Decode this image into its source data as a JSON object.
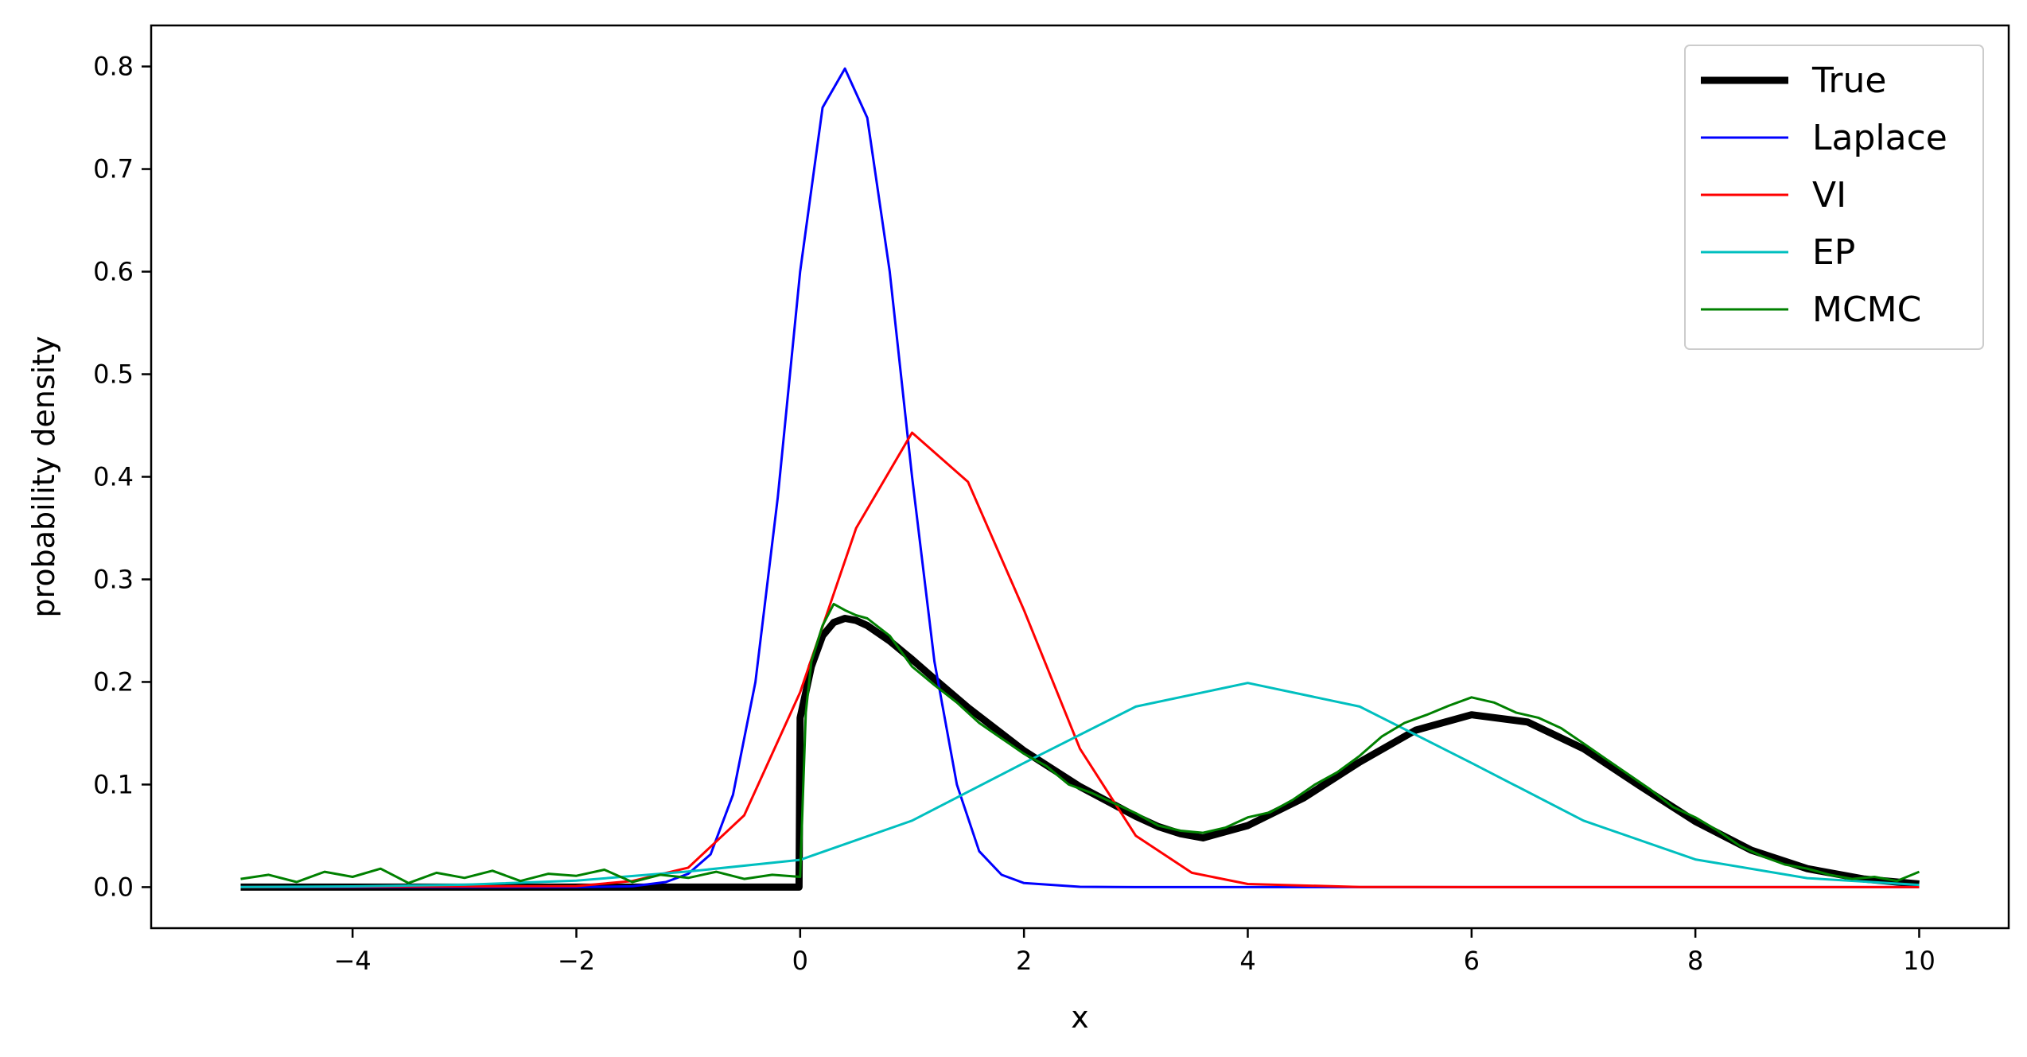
{
  "chart_data": {
    "type": "line",
    "title": "",
    "xlabel": "x",
    "ylabel": "probability density",
    "xlim": [
      -5.8,
      10.8
    ],
    "ylim": [
      -0.04,
      0.84
    ],
    "xticks": [
      -4,
      -2,
      0,
      2,
      4,
      6,
      8,
      10
    ],
    "xtick_labels": [
      "−4",
      "−2",
      "0",
      "2",
      "4",
      "6",
      "8",
      "10"
    ],
    "yticks": [
      0.0,
      0.1,
      0.2,
      0.3,
      0.4,
      0.5,
      0.6,
      0.7,
      0.8
    ],
    "ytick_labels": [
      "0.0",
      "0.1",
      "0.2",
      "0.3",
      "0.4",
      "0.5",
      "0.6",
      "0.7",
      "0.8"
    ],
    "grid": false,
    "legend_position": "top-right",
    "series": [
      {
        "name": "True",
        "color": "#000000",
        "x": [
          -5,
          -4,
          -3,
          -2,
          -1,
          -0.5,
          -0.01,
          0,
          0.05,
          0.1,
          0.2,
          0.3,
          0.4,
          0.5,
          0.6,
          0.8,
          1.0,
          1.2,
          1.5,
          2.0,
          2.5,
          3.0,
          3.2,
          3.4,
          3.6,
          4.0,
          4.5,
          5.0,
          5.5,
          6.0,
          6.5,
          7.0,
          7.5,
          8.0,
          8.5,
          9.0,
          9.5,
          10.0
        ],
        "y": [
          0,
          0,
          0,
          0,
          0,
          0,
          0,
          0.165,
          0.19,
          0.215,
          0.245,
          0.258,
          0.262,
          0.26,
          0.255,
          0.24,
          0.222,
          0.203,
          0.175,
          0.133,
          0.098,
          0.069,
          0.059,
          0.052,
          0.048,
          0.06,
          0.087,
          0.122,
          0.153,
          0.168,
          0.161,
          0.135,
          0.099,
          0.064,
          0.036,
          0.018,
          0.008,
          0.003
        ]
      },
      {
        "name": "Laplace",
        "color": "#0000ff",
        "x": [
          -5,
          -2,
          -1.5,
          -1.2,
          -1.0,
          -0.8,
          -0.6,
          -0.4,
          -0.2,
          0.0,
          0.2,
          0.4,
          0.6,
          0.8,
          1.0,
          1.2,
          1.4,
          1.6,
          1.8,
          2.0,
          2.5,
          3.0,
          4.0,
          6.0,
          8.0,
          10.0
        ],
        "y": [
          0,
          0,
          0.0008,
          0.005,
          0.013,
          0.032,
          0.09,
          0.2,
          0.38,
          0.6,
          0.76,
          0.798,
          0.75,
          0.6,
          0.4,
          0.22,
          0.1,
          0.035,
          0.012,
          0.004,
          0.0003,
          0,
          0,
          0,
          0,
          0
        ]
      },
      {
        "name": "VI",
        "color": "#ff0000",
        "x": [
          -5,
          -2,
          -1.5,
          -1.0,
          -0.5,
          0.0,
          0.5,
          1.0,
          1.5,
          2.0,
          2.5,
          3.0,
          3.5,
          4.0,
          5.0,
          6.0,
          8.0,
          10.0
        ],
        "y": [
          0,
          0.001,
          0.006,
          0.019,
          0.07,
          0.19,
          0.35,
          0.443,
          0.395,
          0.27,
          0.135,
          0.05,
          0.014,
          0.003,
          0.0002,
          0,
          0,
          0
        ]
      },
      {
        "name": "EP",
        "color": "#00bfbf",
        "x": [
          -5,
          -4,
          -3,
          -2,
          -1,
          0,
          1,
          2,
          3,
          4,
          5,
          6,
          7,
          8,
          9,
          10
        ],
        "y": [
          0.0001,
          0.0007,
          0.0023,
          0.0064,
          0.0152,
          0.0266,
          0.0648,
          0.121,
          0.176,
          0.199,
          0.176,
          0.121,
          0.0648,
          0.027,
          0.0088,
          0.0022
        ]
      },
      {
        "name": "MCMC",
        "color": "#008000",
        "x": [
          -5,
          -4.75,
          -4.5,
          -4.25,
          -4.0,
          -3.75,
          -3.5,
          -3.25,
          -3.0,
          -2.75,
          -2.5,
          -2.25,
          -2.0,
          -1.75,
          -1.5,
          -1.25,
          -1.0,
          -0.75,
          -0.5,
          -0.25,
          0.0,
          0.05,
          0.1,
          0.2,
          0.3,
          0.4,
          0.5,
          0.6,
          0.8,
          1.0,
          1.2,
          1.4,
          1.6,
          1.8,
          2.0,
          2.2,
          2.4,
          2.6,
          2.8,
          3.0,
          3.2,
          3.4,
          3.6,
          3.8,
          4.0,
          4.2,
          4.4,
          4.6,
          4.8,
          5.0,
          5.2,
          5.4,
          5.6,
          5.8,
          6.0,
          6.2,
          6.4,
          6.6,
          6.8,
          7.0,
          7.2,
          7.4,
          7.6,
          7.8,
          8.0,
          8.2,
          8.4,
          8.6,
          8.8,
          9.0,
          9.2,
          9.4,
          9.6,
          9.8,
          10.0
        ],
        "y": [
          0.008,
          0.012,
          0.005,
          0.015,
          0.01,
          0.018,
          0.004,
          0.014,
          0.009,
          0.016,
          0.006,
          0.013,
          0.011,
          0.017,
          0.005,
          0.012,
          0.009,
          0.015,
          0.008,
          0.012,
          0.01,
          0.17,
          0.22,
          0.255,
          0.276,
          0.27,
          0.265,
          0.262,
          0.245,
          0.215,
          0.197,
          0.18,
          0.16,
          0.145,
          0.13,
          0.118,
          0.1,
          0.092,
          0.082,
          0.072,
          0.06,
          0.055,
          0.053,
          0.058,
          0.068,
          0.073,
          0.085,
          0.1,
          0.112,
          0.128,
          0.147,
          0.16,
          0.168,
          0.177,
          0.185,
          0.18,
          0.17,
          0.165,
          0.155,
          0.14,
          0.125,
          0.11,
          0.095,
          0.078,
          0.068,
          0.055,
          0.04,
          0.03,
          0.022,
          0.018,
          0.012,
          0.008,
          0.01,
          0.006,
          0.015
        ]
      }
    ]
  }
}
